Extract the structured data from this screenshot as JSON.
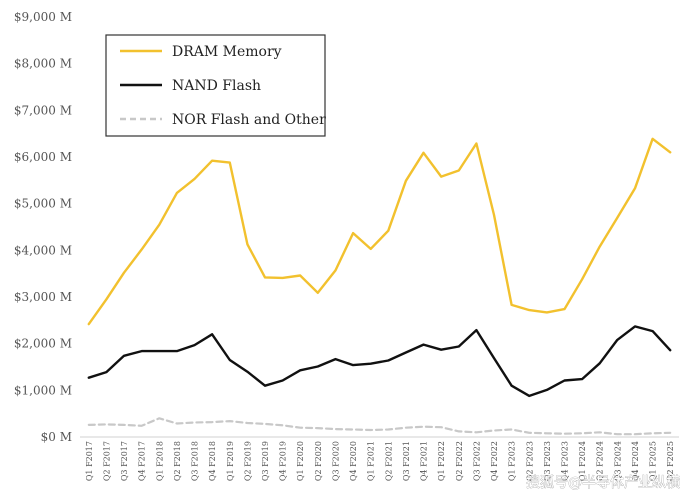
{
  "chart_data": {
    "type": "line",
    "x": [
      "Q1 F2017",
      "Q2 F2017",
      "Q3 F2017",
      "Q4 F2017",
      "Q1 F2018",
      "Q2 F2018",
      "Q3 F2018",
      "Q4 F2018",
      "Q1 F2019",
      "Q2 F2019",
      "Q3 F2019",
      "Q4 F2019",
      "Q1 F2020",
      "Q2 F2020",
      "Q3 F2020",
      "Q4 F2020",
      "Q1 F2021",
      "Q2 F2021",
      "Q3 F2021",
      "Q4 F2021",
      "Q1 F2022",
      "Q2 F2022",
      "Q3 F2022",
      "Q4 F2022",
      "Q1 F2023",
      "Q2 F2023",
      "Q3 F2023",
      "Q4 F2023",
      "Q1 F2024",
      "Q2 F2024",
      "Q3 F2024",
      "Q4 F2024",
      "Q1 F2025",
      "Q2 F2025"
    ],
    "series": [
      {
        "name": "DRAM Memory",
        "color": "#f2c12e",
        "dash": false,
        "values": [
          2420,
          2950,
          3520,
          4020,
          4550,
          5230,
          5530,
          5920,
          5880,
          4130,
          3420,
          3410,
          3460,
          3090,
          3570,
          4370,
          4030,
          4420,
          5490,
          6090,
          5580,
          5710,
          6290,
          4760,
          2830,
          2720,
          2670,
          2740,
          3380,
          4080,
          4700,
          5330,
          6390,
          6100
        ]
      },
      {
        "name": "NAND Flash",
        "color": "#111111",
        "dash": false,
        "values": [
          1270,
          1390,
          1740,
          1840,
          1840,
          1840,
          1970,
          2200,
          1650,
          1400,
          1100,
          1210,
          1430,
          1510,
          1670,
          1540,
          1570,
          1640,
          1810,
          1980,
          1870,
          1940,
          2290,
          1690,
          1100,
          880,
          1010,
          1210,
          1240,
          1580,
          2080,
          2370,
          2270,
          1860
        ]
      },
      {
        "name": "NOR Flash and Other",
        "color": "#c8c8c8",
        "dash": true,
        "values": [
          260,
          270,
          260,
          240,
          400,
          290,
          310,
          320,
          340,
          300,
          280,
          250,
          200,
          190,
          170,
          160,
          150,
          160,
          200,
          220,
          210,
          120,
          100,
          140,
          160,
          90,
          80,
          70,
          80,
          100,
          60,
          60,
          80,
          90
        ]
      }
    ],
    "yticks": [
      "$0 M",
      "$1,000 M",
      "$2,000 M",
      "$3,000 M",
      "$4,000 M",
      "$5,000 M",
      "$6,000 M",
      "$7,000 M",
      "$8,000 M",
      "$9,000 M"
    ],
    "ylim": [
      0,
      9000
    ],
    "grid": false,
    "legend_position": "top-left"
  },
  "watermark": "搜狐号@半导体产业纵横"
}
